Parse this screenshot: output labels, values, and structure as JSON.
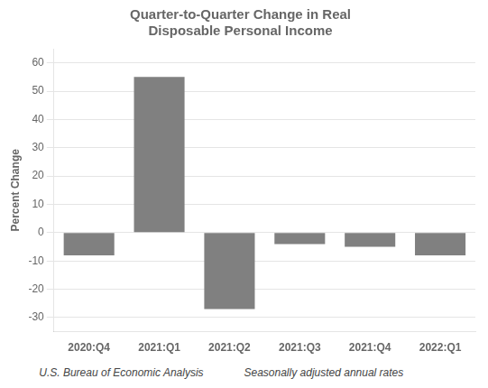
{
  "chart_data": {
    "type": "bar",
    "title": "Quarter-to-Quarter Change in Real\nDisposable Personal Income",
    "ylabel": "Percent Change",
    "annotations": [
      "U.S. Bureau of Economic Analysis",
      "Seasonally adjusted annual rates"
    ],
    "categories": [
      "2020:Q4",
      "2021:Q1",
      "2021:Q2",
      "2021:Q3",
      "2021:Q4",
      "2022:Q1"
    ],
    "values": [
      -8.0,
      55.0,
      -27.0,
      -4.0,
      -5.0,
      -8.0
    ],
    "color": "#808080",
    "ylim": [
      -35,
      65
    ],
    "yticks": [
      -30,
      -20,
      -10,
      0,
      10,
      20,
      30,
      40,
      50,
      60
    ],
    "grid": true
  }
}
